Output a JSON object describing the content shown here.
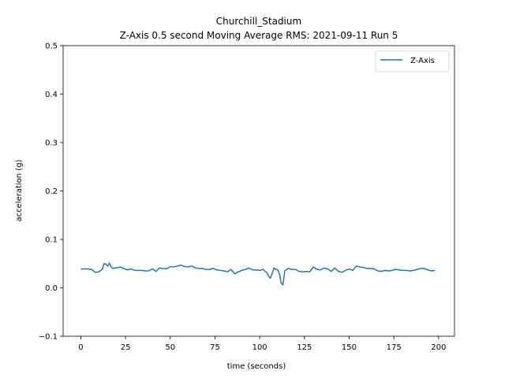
{
  "chart_data": {
    "type": "line",
    "title": "Churchill_Stadium",
    "subtitle": "Z-Axis 0.5 second Moving Average RMS: 2021-09-11 Run 5",
    "xlabel": "time (seconds)",
    "ylabel": "acceleration (g)",
    "xlim": [
      -9.9,
      208.9
    ],
    "ylim": [
      -0.1,
      0.5
    ],
    "xticks": [
      0,
      25,
      50,
      75,
      100,
      125,
      150,
      175,
      200
    ],
    "yticks": [
      -0.1,
      0.0,
      0.1,
      0.2,
      0.3,
      0.4,
      0.5
    ],
    "xtick_labels": [
      "0",
      "25",
      "50",
      "75",
      "100",
      "125",
      "150",
      "175",
      "200"
    ],
    "ytick_labels": [
      "−0.1",
      "0.0",
      "0.1",
      "0.2",
      "0.3",
      "0.4",
      "0.5"
    ],
    "grid": false,
    "legend": {
      "position": "top-right",
      "entries": [
        "Z-Axis"
      ]
    },
    "colors": {
      "series": "#1f77b4"
    },
    "series": [
      {
        "name": "Z-Axis",
        "x": [
          0,
          2,
          4,
          6,
          8,
          10,
          12,
          13,
          14,
          15,
          16,
          17,
          18,
          19,
          20,
          22,
          24,
          26,
          28,
          30,
          32,
          34,
          36,
          38,
          40,
          42,
          44,
          46,
          48,
          50,
          52,
          54,
          56,
          58,
          60,
          62,
          64,
          66,
          68,
          70,
          72,
          74,
          76,
          78,
          80,
          82,
          84,
          86,
          88,
          90,
          92,
          94,
          96,
          98,
          100,
          102,
          104,
          105,
          106,
          107,
          108,
          109,
          110,
          111,
          112,
          113,
          114,
          116,
          118,
          120,
          122,
          124,
          126,
          128,
          130,
          132,
          134,
          136,
          138,
          140,
          142,
          144,
          146,
          148,
          150,
          152,
          154,
          156,
          158,
          160,
          162,
          164,
          166,
          168,
          170,
          172,
          174,
          176,
          178,
          180,
          182,
          184,
          186,
          188,
          190,
          192,
          194,
          196,
          198
        ],
        "values": [
          0.039,
          0.039,
          0.039,
          0.038,
          0.032,
          0.033,
          0.038,
          0.05,
          0.049,
          0.045,
          0.051,
          0.043,
          0.04,
          0.041,
          0.041,
          0.043,
          0.04,
          0.037,
          0.039,
          0.036,
          0.036,
          0.036,
          0.035,
          0.035,
          0.039,
          0.034,
          0.041,
          0.04,
          0.039,
          0.044,
          0.043,
          0.045,
          0.047,
          0.044,
          0.043,
          0.045,
          0.041,
          0.04,
          0.04,
          0.038,
          0.038,
          0.04,
          0.037,
          0.036,
          0.035,
          0.033,
          0.038,
          0.029,
          0.033,
          0.036,
          0.038,
          0.041,
          0.037,
          0.037,
          0.036,
          0.038,
          0.031,
          0.024,
          0.02,
          0.03,
          0.041,
          0.038,
          0.037,
          0.03,
          0.01,
          0.006,
          0.035,
          0.04,
          0.038,
          0.038,
          0.034,
          0.033,
          0.034,
          0.033,
          0.043,
          0.038,
          0.037,
          0.041,
          0.039,
          0.034,
          0.041,
          0.034,
          0.032,
          0.036,
          0.039,
          0.036,
          0.045,
          0.043,
          0.042,
          0.04,
          0.04,
          0.039,
          0.035,
          0.034,
          0.036,
          0.035,
          0.036,
          0.038,
          0.037,
          0.036,
          0.036,
          0.035,
          0.036,
          0.038,
          0.04,
          0.04,
          0.037,
          0.035,
          0.036
        ]
      }
    ]
  }
}
